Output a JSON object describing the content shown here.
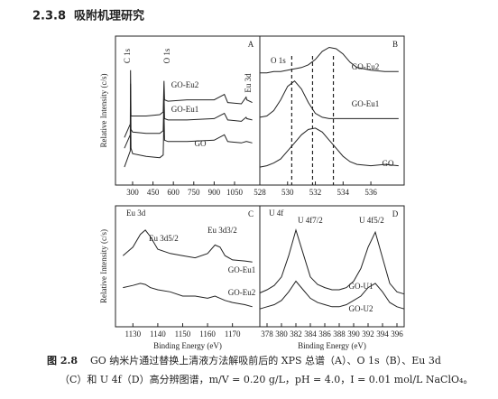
{
  "section": {
    "number": "2.3.8",
    "title": "吸附机理研究"
  },
  "chart_data": [
    {
      "type": "line",
      "panel_label": "A",
      "y_label": "Relative Intensity (c/s)",
      "annotations": [
        "C 1s",
        "O 1s",
        "Eu 3d"
      ],
      "x": [
        240,
        283,
        285,
        288,
        300,
        400,
        500,
        525,
        531,
        535,
        560,
        700,
        900,
        975,
        1000,
        1100,
        1135,
        1140,
        1180
      ],
      "xlim": [
        174,
        1236
      ],
      "xticks": [
        300,
        450,
        600,
        750,
        900,
        1050
      ],
      "ylim": [
        0,
        100
      ],
      "series": [
        {
          "name": "GO-Eu2",
          "color": "#222222",
          "values": [
            30,
            40,
            80,
            46,
            46,
            46,
            47,
            49,
            72,
            58,
            57,
            58,
            58,
            62,
            56,
            55,
            60,
            58,
            56
          ]
        },
        {
          "name": "GO-Eu1",
          "color": "#222222",
          "values": [
            22,
            32,
            70,
            36,
            34,
            33,
            33,
            35,
            62,
            44,
            43,
            43,
            44,
            48,
            43,
            42,
            45,
            44,
            43
          ]
        },
        {
          "name": "GO",
          "color": "#222222",
          "values": [
            8,
            20,
            58,
            22,
            18,
            16,
            15,
            17,
            48,
            28,
            27,
            27,
            28,
            32,
            27,
            26,
            27,
            27,
            26
          ]
        }
      ]
    },
    {
      "type": "line",
      "panel_label": "B",
      "annotations": [
        "O 1s"
      ],
      "x": [
        528,
        528.5,
        529,
        529.5,
        530,
        530.5,
        531,
        531.5,
        532,
        532.5,
        533,
        533.5,
        534,
        534.5,
        535,
        536,
        537,
        538
      ],
      "xlim": [
        528,
        538.4
      ],
      "xticks": [
        528,
        530,
        532,
        534,
        536
      ],
      "ylim": [
        0,
        100
      ],
      "reference_lines": [
        530.3,
        531.8,
        533.3
      ],
      "series": [
        {
          "name": "GO-Eu2",
          "color": "#222222",
          "values": [
            78,
            78,
            79,
            79,
            80,
            81,
            82,
            84,
            88,
            94,
            97,
            96,
            92,
            86,
            82,
            80,
            79,
            79
          ]
        },
        {
          "name": "GO-Eu1",
          "color": "#222222",
          "values": [
            45,
            46,
            50,
            58,
            68,
            72,
            66,
            56,
            48,
            45,
            44,
            44,
            44,
            44,
            44,
            44,
            44,
            44
          ]
        },
        {
          "name": "GO",
          "color": "#222222",
          "values": [
            8,
            9,
            11,
            14,
            20,
            26,
            32,
            36,
            37,
            34,
            28,
            22,
            16,
            12,
            10,
            9,
            10,
            9
          ]
        }
      ]
    },
    {
      "type": "line",
      "panel_label": "C",
      "y_label": "Relative Intensity (c/s)",
      "x_label": "Binding Energy (eV)",
      "annotations": [
        "Eu 3d",
        "Eu 3d5/2",
        "Eu 3d3/2"
      ],
      "x": [
        1126,
        1130,
        1133,
        1135,
        1137,
        1140,
        1145,
        1150,
        1155,
        1160,
        1163,
        1165,
        1167,
        1170,
        1175,
        1178
      ],
      "xlim": [
        1123,
        1181
      ],
      "xticks": [
        1130,
        1140,
        1150,
        1160,
        1170
      ],
      "ylim": [
        0,
        100
      ],
      "series": [
        {
          "name": "GO-Eu1",
          "color": "#222222",
          "values": [
            60,
            68,
            80,
            84,
            78,
            66,
            62,
            60,
            58,
            62,
            70,
            68,
            60,
            56,
            55,
            54
          ]
        },
        {
          "name": "GO-Eu2",
          "color": "#222222",
          "values": [
            30,
            32,
            34,
            33,
            30,
            28,
            26,
            22,
            22,
            20,
            22,
            20,
            18,
            16,
            14,
            12
          ]
        }
      ]
    },
    {
      "type": "line",
      "panel_label": "D",
      "x_label": "Binding Energy (eV)",
      "annotations": [
        "U 4f",
        "U 4f7/2",
        "U 4f5/2"
      ],
      "x": [
        377,
        378,
        379,
        380,
        381,
        382,
        383,
        384,
        385,
        386,
        387,
        388,
        389,
        390,
        391,
        392,
        393,
        394,
        395,
        396,
        397
      ],
      "xlim": [
        377,
        397
      ],
      "xticks": [
        378,
        380,
        382,
        384,
        386,
        388,
        390,
        392,
        394,
        396
      ],
      "ylim": [
        0,
        100
      ],
      "series": [
        {
          "name": "GO-U1",
          "color": "#222222",
          "values": [
            25,
            28,
            32,
            40,
            60,
            84,
            62,
            40,
            33,
            30,
            28,
            28,
            30,
            36,
            48,
            68,
            82,
            58,
            34,
            26,
            24
          ]
        },
        {
          "name": "GO-U2",
          "color": "#222222",
          "values": [
            10,
            12,
            14,
            18,
            26,
            36,
            28,
            20,
            16,
            14,
            12,
            12,
            14,
            18,
            22,
            30,
            34,
            26,
            16,
            12,
            10
          ]
        }
      ]
    }
  ],
  "caption": {
    "label": "图 2.8",
    "lines": [
      "GO 纳米片通过替换上清液方法解吸前后的 XPS 总谱（A）、O 1s（B）、Eu 3d",
      "（C）和 U 4f（D）高分辨图谱，m/V = 0.20 g/L，pH = 4.0，I = 0.01 mol/L NaClO₄。"
    ]
  }
}
